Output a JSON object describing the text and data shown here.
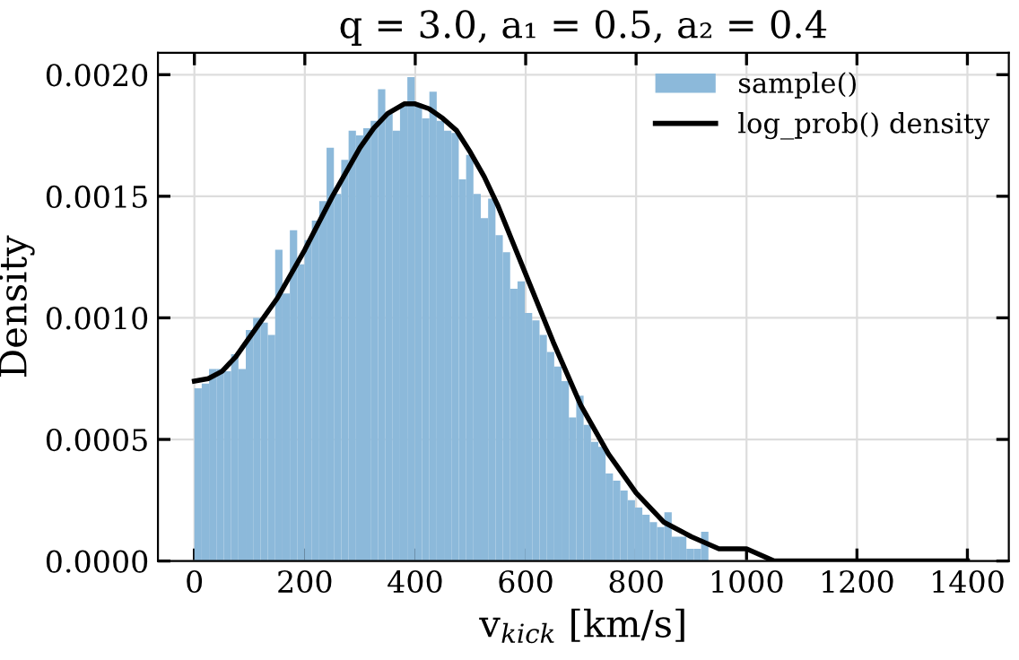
{
  "chart_data": {
    "type": "histogram",
    "title": "q = 3.0, a₁ = 0.5, a₂ = 0.4",
    "xlabel": "v$_{kick}$ [km/s]",
    "ylabel": "Density",
    "bins": [
      0,
      13.3,
      26.6,
      39.9,
      53.2,
      66.5,
      79.8,
      93.1,
      106.4,
      119.7,
      133,
      146.3,
      159.6,
      172.9,
      186.2,
      199.5,
      212.8,
      226.1,
      239.4,
      252.7,
      266,
      279.3,
      292.6,
      305.9,
      319.2,
      332.5,
      345.8,
      359.1,
      372.4,
      385.7,
      399,
      412.3,
      425.6,
      438.9,
      452.2,
      465.5,
      478.8,
      492.1,
      505.4,
      518.7,
      532,
      545.3,
      558.6,
      571.9,
      585.2,
      598.5,
      611.8,
      625.1,
      638.4,
      651.7,
      665,
      678.3,
      691.6,
      704.9,
      718.2,
      731.5,
      744.8,
      758.1,
      771.4,
      784.7,
      798,
      811.3,
      824.6,
      837.9,
      851.2,
      864.5,
      877.8,
      891.1,
      904.4,
      917.7,
      931
    ],
    "series": [
      {
        "name": "sample()",
        "color": "#8cb9da",
        "values": [
          0.00071,
          0.00073,
          0.00079,
          0.00079,
          0.00078,
          0.00085,
          0.00079,
          0.00095,
          0.001,
          0.00098,
          0.00093,
          0.00128,
          0.0011,
          0.00136,
          0.00122,
          0.00132,
          0.0014,
          0.00148,
          0.0017,
          0.00151,
          0.00165,
          0.00177,
          0.00175,
          0.00178,
          0.00181,
          0.00194,
          0.00184,
          0.00177,
          0.00188,
          0.00199,
          0.00188,
          0.00182,
          0.00193,
          0.00181,
          0.00177,
          0.00176,
          0.00157,
          0.00167,
          0.00151,
          0.00141,
          0.00149,
          0.00134,
          0.00127,
          0.00112,
          0.00115,
          0.00102,
          0.00099,
          0.00093,
          0.00086,
          0.0008,
          0.00074,
          0.00059,
          0.00068,
          0.00056,
          0.00049,
          0.00047,
          0.00036,
          0.00033,
          0.00029,
          0.00025,
          0.00022,
          0.00019,
          0.00016,
          0.00014,
          0.0002,
          0.0001,
          0.0001,
          5e-05,
          5e-05,
          0.00012
        ]
      },
      {
        "name": "log_prob() density",
        "type": "line",
        "color": "#000000",
        "x": [
          0,
          25,
          50,
          75,
          100,
          150,
          200,
          250,
          300,
          325,
          350,
          380,
          400,
          425,
          450,
          475,
          500,
          525,
          550,
          575,
          600,
          650,
          700,
          750,
          800,
          850,
          900,
          950,
          1000,
          1050,
          1100,
          1200,
          1300,
          1400
        ],
        "values": [
          0.00074,
          0.00075,
          0.00078,
          0.00084,
          0.00092,
          0.00108,
          0.00128,
          0.0015,
          0.0017,
          0.00178,
          0.00184,
          0.00188,
          0.00188,
          0.00186,
          0.00182,
          0.00177,
          0.00168,
          0.00158,
          0.00146,
          0.00132,
          0.00118,
          0.0009,
          0.00064,
          0.00044,
          0.00028,
          0.00016,
          0.0001,
          5e-05,
          5e-05,
          0,
          0,
          0,
          0,
          0
        ]
      }
    ],
    "xlim": [
      -66,
      1475
    ],
    "xticks": [
      0,
      200,
      400,
      600,
      800,
      1000,
      1200,
      1400
    ],
    "ylim": [
      0,
      0.00209
    ],
    "yticks": [
      {
        "value": 0,
        "label": "0.0000"
      },
      {
        "value": 0.0005,
        "label": "0.0005"
      },
      {
        "value": 0.001,
        "label": "0.0010"
      },
      {
        "value": 0.0015,
        "label": "0.0015"
      },
      {
        "value": 0.002,
        "label": "0.0020"
      }
    ],
    "grid": true,
    "legend": "top right",
    "line_style": "solid",
    "marker": "none"
  }
}
